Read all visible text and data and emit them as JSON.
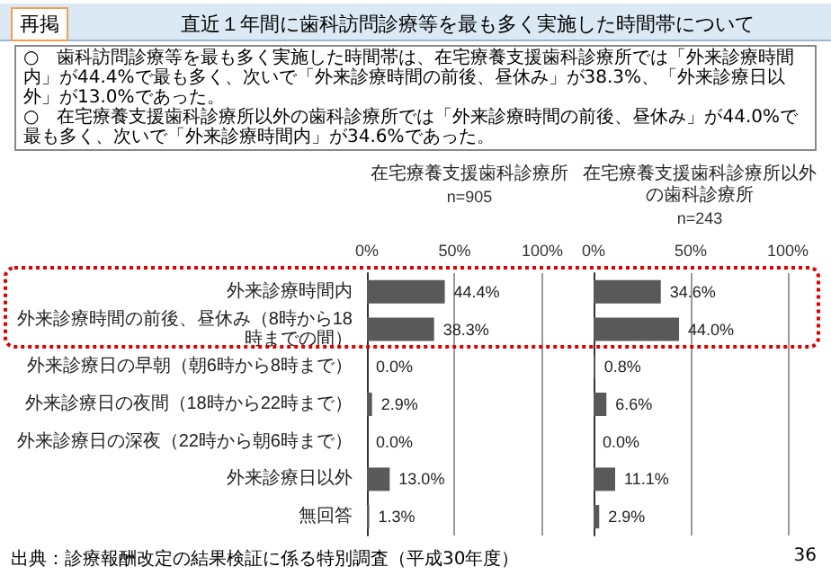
{
  "chart_data": [
    {
      "type": "other",
      "title": "直近１年間に歯科訪問診療等を最も多く実施した時間帯について",
      "annotations": [
        "再掲",
        "○　歯科訪問診療等を最も多く実施した時間帯は、在宅療養支援歯科診療所では「外来診療時間内」が44.4%で最も多く、次いで「外来診療時間の前後、昼休み」が38.3%、「外来診療日以外」が13.0%であった。",
        "○　在宅療養支援歯科診療所以外の歯科診療所では「外来診療時間の前後、昼休み」が44.0%で最も多く、次いで「外来診療時間内」が34.6%であった。",
        "出典：診療報酬改定の結果検証に係る特別調査（平成30年度）",
        "36"
      ]
    },
    {
      "type": "bar",
      "orientation": "horizontal",
      "title": "在宅療養支援歯科診療所",
      "subtitle": "n=905",
      "categories": [
        "外来診療時間内",
        "外来診療時間の前後、昼休み（8時から18時までの間）",
        "外来診療日の早朝（朝6時から8時まで）",
        "外来診療日の夜間（18時から22時まで）",
        "外来診療日の深夜（22時から朝6時まで）",
        "外来診療日以外",
        "無回答"
      ],
      "values": [
        44.4,
        38.3,
        0.0,
        2.9,
        0.0,
        13.0,
        1.3
      ],
      "value_labels": [
        "44.4%",
        "38.3%",
        "0.0%",
        "2.9%",
        "0.0%",
        "13.0%",
        "1.3%"
      ],
      "color": "#595959",
      "xlim": [
        0,
        100
      ],
      "xticks": [
        {
          "value": 0,
          "label": "0%"
        },
        {
          "value": 50,
          "label": "50%"
        },
        {
          "value": 100,
          "label": "100%"
        }
      ],
      "grid": "x"
    },
    {
      "type": "bar",
      "orientation": "horizontal",
      "title": "在宅療養支援歯科診療所以外の歯科診療所",
      "subtitle": "n=243",
      "categories": [
        "外来診療時間内",
        "外来診療時間の前後、昼休み（8時から18時までの間）",
        "外来診療日の早朝（朝6時から8時まで）",
        "外来診療日の夜間（18時から22時まで）",
        "外来診療日の深夜（22時から朝6時まで）",
        "外来診療日以外",
        "無回答"
      ],
      "values": [
        34.6,
        44.0,
        0.8,
        6.6,
        0.0,
        11.1,
        2.9
      ],
      "value_labels": [
        "34.6%",
        "44.0%",
        "0.8%",
        "6.6%",
        "0.0%",
        "11.1%",
        "2.9%"
      ],
      "color": "#595959",
      "xlim": [
        0,
        100
      ],
      "xticks": [
        {
          "value": 0,
          "label": "0%"
        },
        {
          "value": 50,
          "label": "50%"
        },
        {
          "value": 100,
          "label": "100%"
        }
      ],
      "grid": "x",
      "tick_labels": "x"
    }
  ]
}
